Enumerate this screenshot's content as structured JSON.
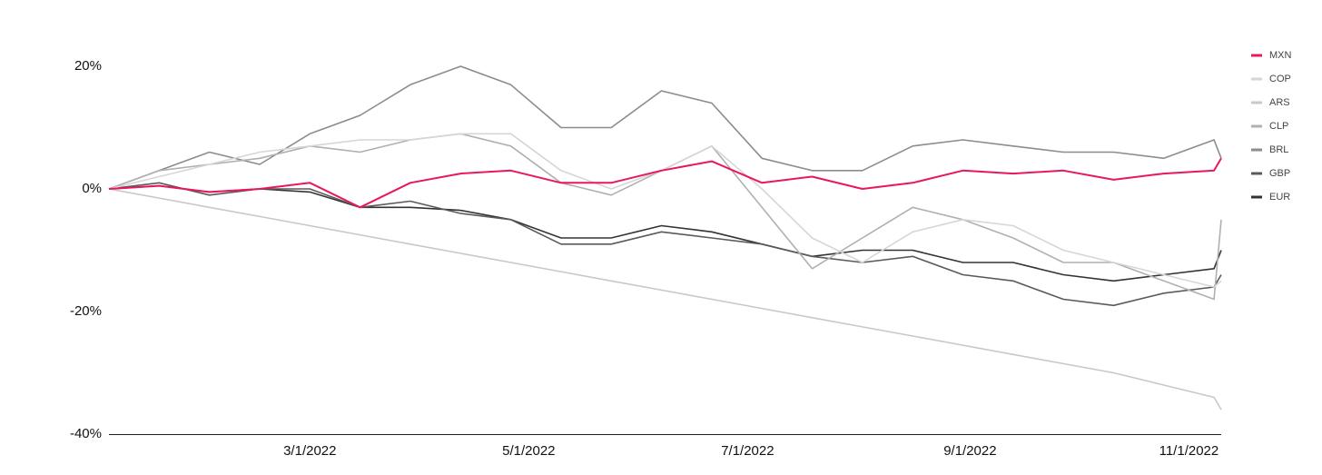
{
  "chart_data": {
    "type": "line",
    "x": [
      "1/4/2022",
      "1/18/2022",
      "2/1/2022",
      "2/15/2022",
      "3/1/2022",
      "3/15/2022",
      "3/29/2022",
      "4/12/2022",
      "4/26/2022",
      "5/10/2022",
      "5/24/2022",
      "6/7/2022",
      "6/21/2022",
      "7/5/2022",
      "7/19/2022",
      "8/2/2022",
      "8/16/2022",
      "8/30/2022",
      "9/13/2022",
      "9/27/2022",
      "10/11/2022",
      "10/25/2022",
      "11/8/2022",
      "11/10/2022"
    ],
    "xlim": [
      "1/4/2022",
      "11/10/2022"
    ],
    "xticks": [
      "3/1/2022",
      "5/1/2022",
      "7/1/2022",
      "9/1/2022",
      "11/1/2022"
    ],
    "ylim": [
      -40,
      25
    ],
    "yticks": [
      {
        "value": -40,
        "label": "-40%"
      },
      {
        "value": -20,
        "label": "-20%"
      },
      {
        "value": 0,
        "label": "0%"
      },
      {
        "value": 20,
        "label": "20%"
      }
    ],
    "legend": "top-right",
    "series": [
      {
        "name": "MXN",
        "color": "#e8185a",
        "values": [
          0,
          0.5,
          -0.5,
          0,
          1,
          -3,
          1,
          2.5,
          3,
          1,
          1,
          3,
          4.5,
          1,
          2,
          0,
          1,
          3,
          2.5,
          3,
          1.5,
          2.5,
          3,
          5
        ]
      },
      {
        "name": "COP",
        "color": "#d6d6d6",
        "values": [
          0,
          2,
          4,
          6,
          7,
          8,
          8,
          9,
          9,
          3,
          0,
          3,
          7,
          0,
          -8,
          -12,
          -7,
          -5,
          -6,
          -10,
          -12,
          -14,
          -16,
          -15
        ]
      },
      {
        "name": "ARS",
        "color": "#c8c8c8",
        "values": [
          0,
          -1.5,
          -3,
          -4.5,
          -6,
          -7.5,
          -9,
          -10.5,
          -12,
          -13.5,
          -15,
          -16.5,
          -18,
          -19.5,
          -21,
          -22.5,
          -24,
          -25.5,
          -27,
          -28.5,
          -30,
          -32,
          -34,
          -36
        ]
      },
      {
        "name": "CLP",
        "color": "#b0b0b0",
        "values": [
          0,
          3,
          4,
          5,
          7,
          6,
          8,
          9,
          7,
          1,
          -1,
          3,
          7,
          -3,
          -13,
          -8,
          -3,
          -5,
          -8,
          -12,
          -12,
          -15,
          -18,
          -5
        ]
      },
      {
        "name": "BRL",
        "color": "#8c8c8c",
        "values": [
          0,
          3,
          6,
          4,
          9,
          12,
          17,
          20,
          17,
          10,
          10,
          16,
          14,
          5,
          3,
          3,
          7,
          8,
          7,
          6,
          6,
          5,
          8,
          5
        ]
      },
      {
        "name": "GBP",
        "color": "#5a5a5a",
        "values": [
          0,
          1,
          -1,
          0,
          0,
          -3,
          -2,
          -4,
          -5,
          -9,
          -9,
          -7,
          -8,
          -9,
          -11,
          -12,
          -11,
          -14,
          -15,
          -18,
          -19,
          -17,
          -16,
          -14
        ]
      },
      {
        "name": "EUR",
        "color": "#333333",
        "values": [
          0,
          0.5,
          -0.5,
          0,
          -0.5,
          -3,
          -3,
          -3.5,
          -5,
          -8,
          -8,
          -6,
          -7,
          -9,
          -11,
          -10,
          -10,
          -12,
          -12,
          -14,
          -15,
          -14,
          -13,
          -10
        ]
      }
    ]
  }
}
